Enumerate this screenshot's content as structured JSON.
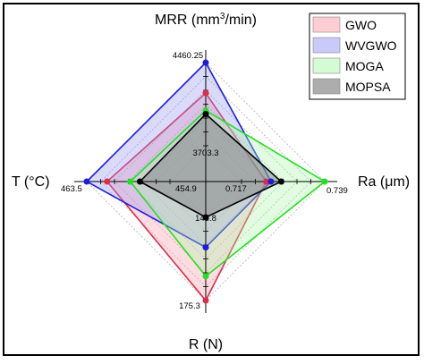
{
  "chart_data": {
    "type": "radar",
    "axes": [
      {
        "key": "MRR",
        "title_main": "MRR (mm",
        "title_sup": "3",
        "title_tail": "/min)",
        "inner_label": "3703.3",
        "outer_label": "4460.25",
        "min": 3703.3,
        "max": 4460.25
      },
      {
        "key": "Ra",
        "title_main": "Ra (μm)",
        "title_sup": "",
        "title_tail": "",
        "inner_label": "0.717",
        "outer_label": "0.739",
        "min": 0.717,
        "max": 0.739
      },
      {
        "key": "R",
        "title_main": "R (N)",
        "title_sup": "",
        "title_tail": "",
        "inner_label": "146.8",
        "outer_label": "175.3",
        "min": 146.8,
        "max": 175.3
      },
      {
        "key": "T",
        "title_main": "T (°C)",
        "title_sup": "",
        "title_tail": "",
        "inner_label": "454.9",
        "outer_label": "463.5",
        "min": 454.9,
        "max": 463.5
      }
    ],
    "grid_levels": 6,
    "legend_position": "top-right",
    "series": [
      {
        "name": "GWO",
        "stroke": "#dd2d4a",
        "fill": "#ff9aa8",
        "fill_opacity": 0.35,
        "values": [
          4183,
          0.7235,
          175.3,
          461.4
        ]
      },
      {
        "name": "WVGWO",
        "stroke": "#1c1ce0",
        "fill": "#8f8ff4",
        "fill_opacity": 0.33,
        "values": [
          4460.25,
          0.7248,
          157.1,
          463.5
        ]
      },
      {
        "name": "MOGA",
        "stroke": "#22e022",
        "fill": "#aaf7aa",
        "fill_opacity": 0.35,
        "values": [
          4025,
          0.739,
          167.0,
          459.0
        ]
      },
      {
        "name": "MOPSA",
        "stroke": "#000000",
        "fill": "#777777",
        "fill_opacity": 0.45,
        "values": [
          3992,
          0.7275,
          146.8,
          458.0
        ]
      }
    ]
  }
}
